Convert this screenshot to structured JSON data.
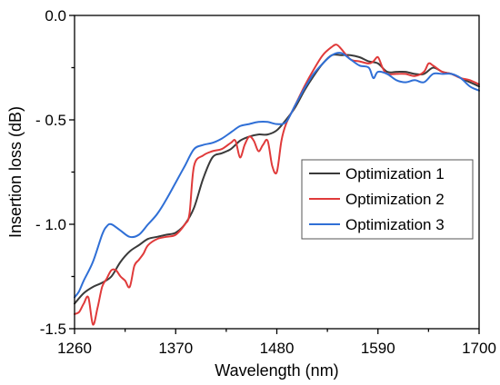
{
  "chart_data": {
    "type": "line",
    "xlabel": "Wavelength (nm)",
    "ylabel": "Insertion loss (dB)",
    "xlim": [
      1260,
      1700
    ],
    "ylim": [
      -1.5,
      0.0
    ],
    "xticks": [
      1260,
      1370,
      1480,
      1590,
      1700
    ],
    "xtick_labels": [
      "1260",
      "1370",
      "1480",
      "1590",
      "1700"
    ],
    "yticks": [
      0.0,
      -0.5,
      -1.0,
      -1.5
    ],
    "ytick_labels": [
      "0.0",
      "- 0.5",
      "- 1.0",
      "-1.5"
    ],
    "y_inverted": false,
    "grid": false,
    "legend_position": "center-right",
    "series": [
      {
        "name": "Optimization 1",
        "color": "#3a3a3a",
        "x": [
          1260,
          1270,
          1280,
          1290,
          1300,
          1310,
          1320,
          1330,
          1340,
          1350,
          1360,
          1370,
          1380,
          1390,
          1400,
          1410,
          1420,
          1430,
          1440,
          1450,
          1460,
          1470,
          1480,
          1490,
          1500,
          1510,
          1520,
          1530,
          1540,
          1550,
          1560,
          1570,
          1580,
          1590,
          1600,
          1610,
          1620,
          1630,
          1640,
          1650,
          1660,
          1670,
          1680,
          1690,
          1700
        ],
        "y": [
          -1.38,
          -1.33,
          -1.3,
          -1.28,
          -1.25,
          -1.18,
          -1.13,
          -1.1,
          -1.07,
          -1.06,
          -1.05,
          -1.04,
          -1.0,
          -0.92,
          -0.78,
          -0.68,
          -0.66,
          -0.64,
          -0.6,
          -0.58,
          -0.57,
          -0.57,
          -0.55,
          -0.5,
          -0.44,
          -0.36,
          -0.29,
          -0.23,
          -0.19,
          -0.19,
          -0.19,
          -0.2,
          -0.22,
          -0.23,
          -0.27,
          -0.27,
          -0.27,
          -0.28,
          -0.28,
          -0.25,
          -0.27,
          -0.28,
          -0.3,
          -0.32,
          -0.34
        ]
      },
      {
        "name": "Optimization 2",
        "color": "#e03a3a",
        "x": [
          1260,
          1265,
          1270,
          1275,
          1280,
          1285,
          1290,
          1295,
          1300,
          1305,
          1310,
          1315,
          1320,
          1325,
          1330,
          1335,
          1340,
          1350,
          1360,
          1370,
          1380,
          1385,
          1390,
          1400,
          1410,
          1420,
          1430,
          1435,
          1440,
          1445,
          1450,
          1455,
          1460,
          1465,
          1470,
          1475,
          1480,
          1485,
          1490,
          1500,
          1510,
          1520,
          1530,
          1540,
          1545,
          1550,
          1560,
          1570,
          1580,
          1585,
          1590,
          1595,
          1600,
          1610,
          1620,
          1630,
          1640,
          1645,
          1650,
          1660,
          1670,
          1680,
          1690,
          1700
        ],
        "y": [
          -1.43,
          -1.42,
          -1.38,
          -1.35,
          -1.48,
          -1.4,
          -1.3,
          -1.26,
          -1.22,
          -1.22,
          -1.25,
          -1.27,
          -1.3,
          -1.2,
          -1.17,
          -1.14,
          -1.1,
          -1.07,
          -1.06,
          -1.05,
          -1.0,
          -0.95,
          -0.72,
          -0.67,
          -0.65,
          -0.64,
          -0.61,
          -0.6,
          -0.68,
          -0.62,
          -0.58,
          -0.6,
          -0.65,
          -0.62,
          -0.6,
          -0.72,
          -0.75,
          -0.6,
          -0.52,
          -0.43,
          -0.34,
          -0.26,
          -0.19,
          -0.15,
          -0.14,
          -0.16,
          -0.21,
          -0.22,
          -0.23,
          -0.22,
          -0.2,
          -0.25,
          -0.28,
          -0.28,
          -0.28,
          -0.29,
          -0.27,
          -0.23,
          -0.24,
          -0.27,
          -0.28,
          -0.3,
          -0.31,
          -0.33
        ]
      },
      {
        "name": "Optimization 3",
        "color": "#2f6fd6",
        "x": [
          1260,
          1265,
          1270,
          1280,
          1290,
          1295,
          1300,
          1310,
          1320,
          1330,
          1340,
          1350,
          1360,
          1370,
          1380,
          1390,
          1400,
          1410,
          1420,
          1430,
          1440,
          1450,
          1460,
          1470,
          1480,
          1490,
          1500,
          1510,
          1520,
          1530,
          1540,
          1550,
          1560,
          1570,
          1580,
          1585,
          1590,
          1600,
          1610,
          1620,
          1630,
          1640,
          1650,
          1660,
          1670,
          1680,
          1690,
          1700
        ],
        "y": [
          -1.35,
          -1.32,
          -1.27,
          -1.18,
          -1.05,
          -1.01,
          -1.0,
          -1.03,
          -1.06,
          -1.05,
          -1.0,
          -0.95,
          -0.88,
          -0.8,
          -0.72,
          -0.64,
          -0.62,
          -0.61,
          -0.59,
          -0.56,
          -0.53,
          -0.52,
          -0.51,
          -0.51,
          -0.52,
          -0.51,
          -0.43,
          -0.35,
          -0.28,
          -0.23,
          -0.19,
          -0.18,
          -0.21,
          -0.24,
          -0.25,
          -0.3,
          -0.27,
          -0.28,
          -0.31,
          -0.32,
          -0.31,
          -0.32,
          -0.28,
          -0.28,
          -0.28,
          -0.3,
          -0.34,
          -0.36
        ]
      }
    ]
  }
}
